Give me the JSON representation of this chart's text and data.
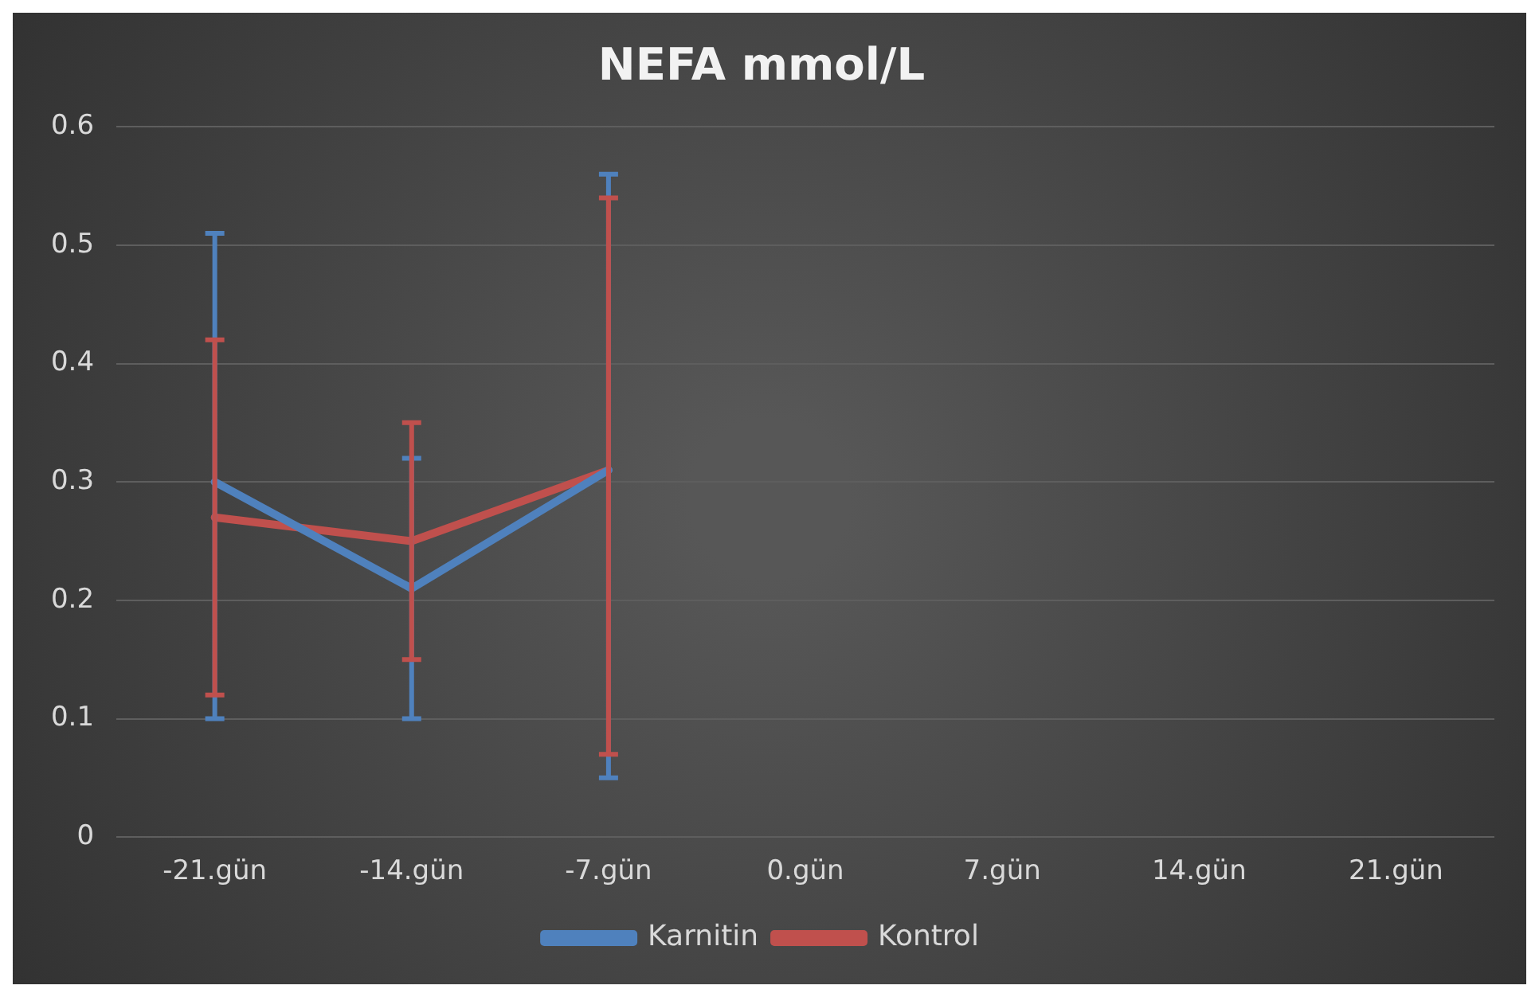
{
  "chart_data": {
    "type": "line",
    "title": "NEFA mmol/L",
    "categories": [
      "-21.gün",
      "-14.gün",
      "-7.gün",
      "0.gün",
      "7.gün",
      "14.gün",
      "21.gün"
    ],
    "series": [
      {
        "name": "Karnitin",
        "color": "#4f81bd",
        "values": [
          0.3,
          0.21,
          0.31,
          null,
          null,
          null,
          null
        ],
        "errors": [
          [
            0.1,
            0.51
          ],
          [
            0.1,
            0.32
          ],
          [
            0.05,
            0.56
          ],
          null,
          null,
          null,
          null
        ]
      },
      {
        "name": "Kontrol",
        "color": "#c0504d",
        "values": [
          0.27,
          0.25,
          0.31,
          null,
          null,
          null,
          null
        ],
        "errors": [
          [
            0.12,
            0.42
          ],
          [
            0.15,
            0.35
          ],
          [
            0.07,
            0.54
          ],
          null,
          null,
          null,
          null
        ]
      }
    ],
    "ylim": [
      0,
      0.6
    ],
    "yticks": [
      0,
      0.1,
      0.2,
      0.3,
      0.4,
      0.5,
      0.6
    ],
    "grid": "y",
    "legend": "bottom",
    "marker": "none",
    "line_style": "solid"
  }
}
